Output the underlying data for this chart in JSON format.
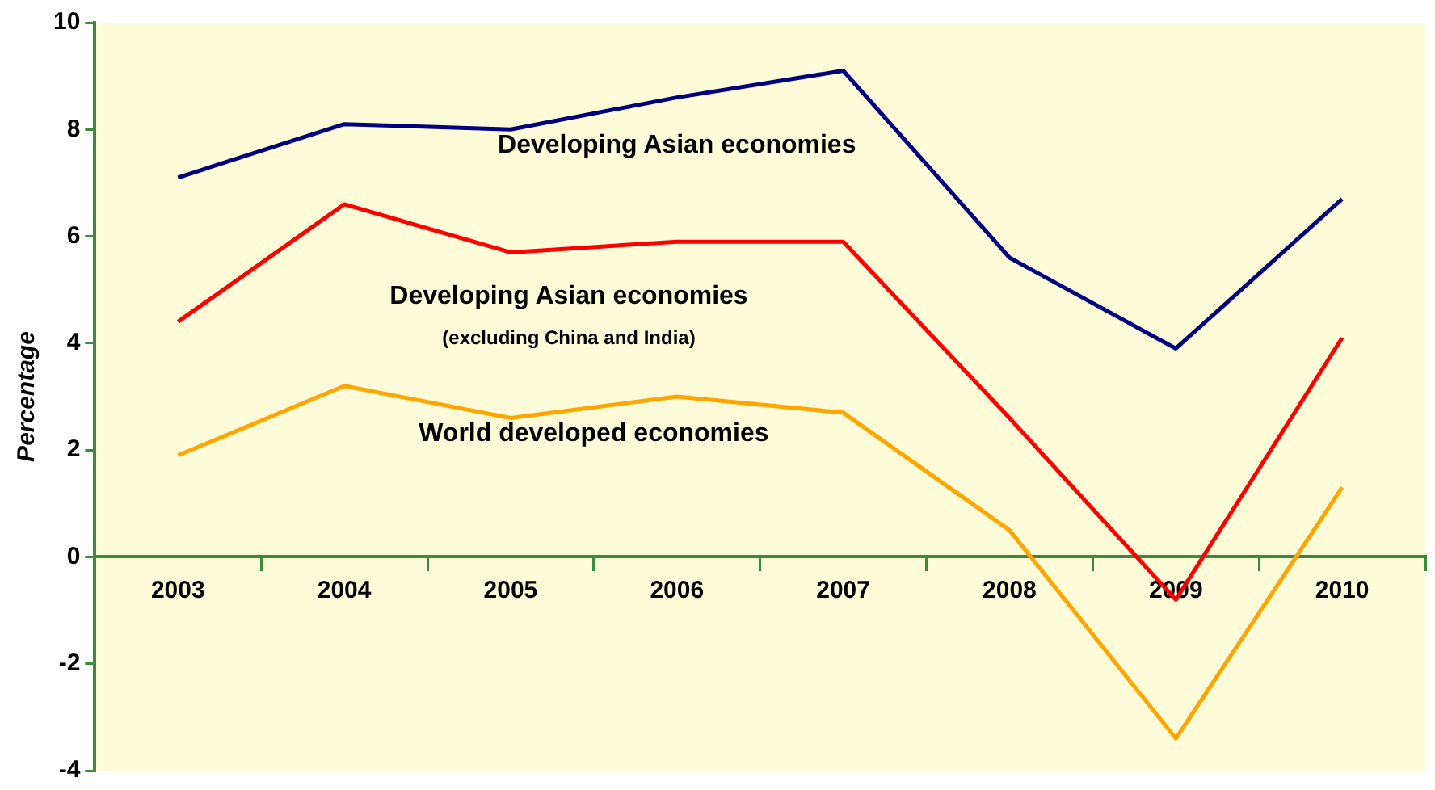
{
  "chart_data": {
    "type": "line",
    "ylabel": "Percentage",
    "categories": [
      "2003",
      "2004",
      "2005",
      "2006",
      "2007",
      "2008",
      "2009",
      "2010"
    ],
    "series": [
      {
        "name": "Developing Asian economies",
        "color": "#000080",
        "values": [
          7.1,
          8.1,
          8.0,
          8.6,
          9.1,
          5.6,
          3.9,
          6.7
        ]
      },
      {
        "name": "Developing Asian economies\n(excluding China and India)",
        "color": "#ff0000",
        "values": [
          4.4,
          6.6,
          5.7,
          5.9,
          5.9,
          2.6,
          -0.8,
          4.1
        ]
      },
      {
        "name": "World developed economies",
        "color": "#ffa500",
        "values": [
          1.9,
          3.2,
          2.6,
          3.0,
          2.7,
          0.5,
          -3.4,
          1.3
        ]
      }
    ],
    "ylim": [
      -4,
      10
    ],
    "yticks": [
      -4,
      -2,
      0,
      2,
      4,
      6,
      8,
      10
    ],
    "grid": false,
    "legend": false,
    "marker": "none",
    "line_style": "solid"
  }
}
